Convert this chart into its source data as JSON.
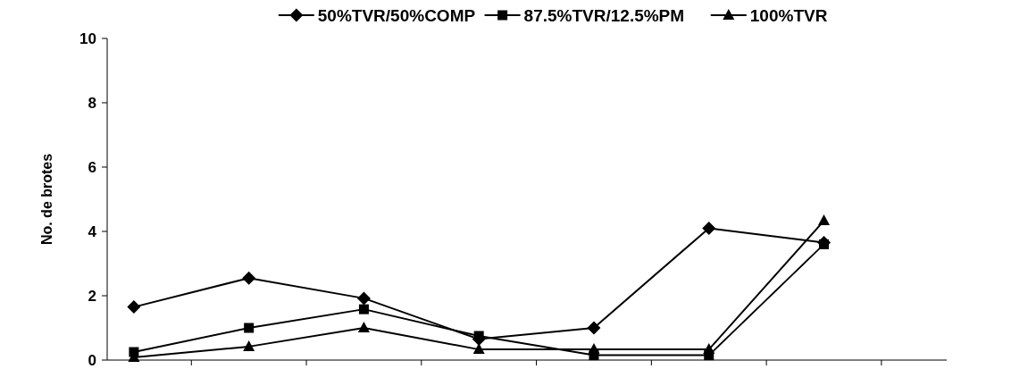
{
  "chart_data": {
    "type": "line",
    "ylabel": "No. de brotes",
    "categories": [
      null,
      null,
      null,
      null,
      null,
      null,
      null
    ],
    "ylim": [
      0,
      10
    ],
    "yticks": [
      0,
      2,
      4,
      6,
      8,
      10
    ],
    "grid": false,
    "legend": "top",
    "line_style": "solid",
    "tick_labels": "y",
    "series": [
      {
        "name": "50%TVR/50%COMP",
        "color": "#000000",
        "marker": "diamond",
        "values": [
          1.65,
          2.55,
          1.92,
          0.65,
          1.0,
          4.1,
          3.65
        ]
      },
      {
        "name": "87.5%TVR/12.5%PM",
        "color": "#000000",
        "marker": "square",
        "values": [
          0.25,
          1.0,
          1.58,
          0.75,
          0.15,
          0.15,
          3.6
        ]
      },
      {
        "name": "100%TVR",
        "color": "#000000",
        "marker": "triangle",
        "values": [
          0.08,
          0.42,
          1.0,
          0.33,
          0.33,
          0.33,
          4.33
        ]
      }
    ]
  }
}
